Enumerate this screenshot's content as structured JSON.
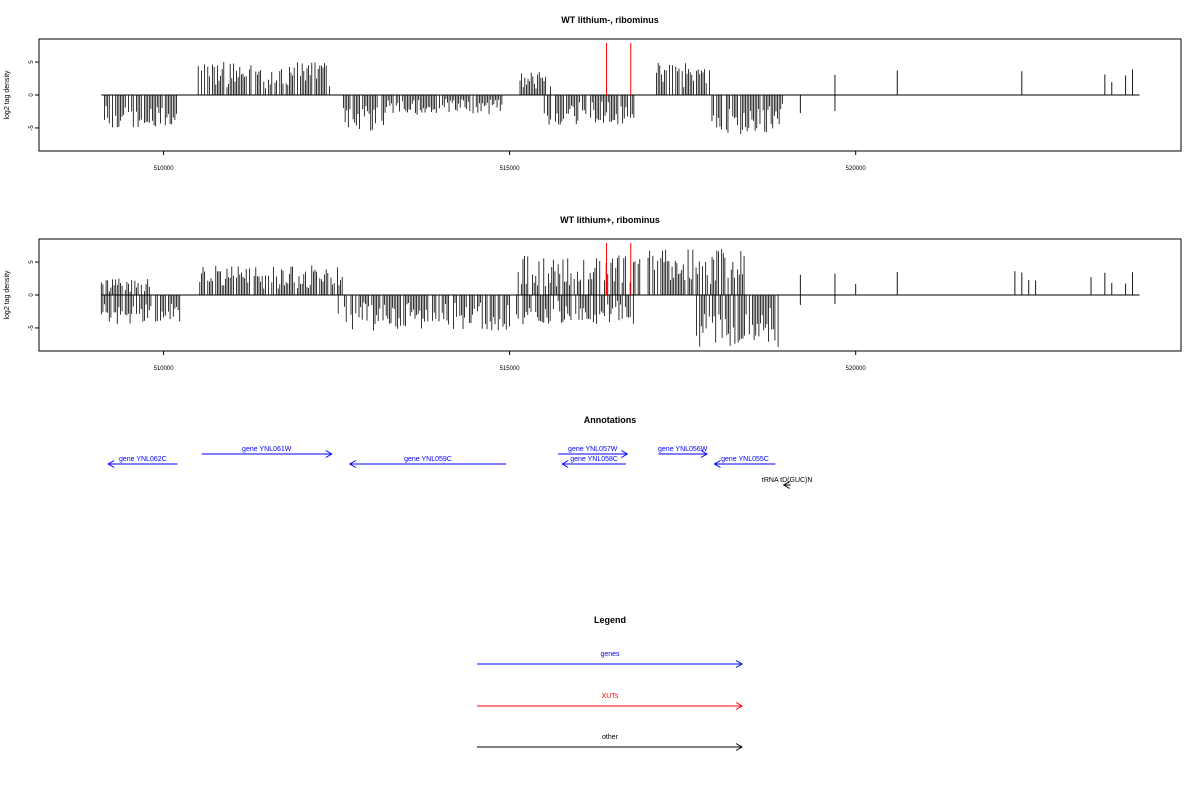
{
  "chart_data": [
    {
      "type": "bar",
      "title": "WT lithium-, ribominus",
      "ylabel": "log2 tag density",
      "xlim": [
        508200,
        524700
      ],
      "ylim": [
        -8.5,
        8.5
      ],
      "xticks": [
        510000,
        515000,
        520000
      ],
      "xtick_labels": [
        "510000",
        "515000",
        "520000"
      ],
      "yticks": [
        5,
        0,
        -5
      ],
      "ytick_labels": [
        "5",
        "0",
        "-5"
      ],
      "grid": false,
      "xut_markers_x": [
        516400,
        516750
      ],
      "signal": [
        {
          "start": 509100,
          "end": 510200,
          "strand": "minus",
          "max": 5.0
        },
        {
          "start": 510500,
          "end": 512400,
          "strand": "plus",
          "max": 5.0
        },
        {
          "start": 512600,
          "end": 513200,
          "strand": "minus",
          "max": 5.8
        },
        {
          "start": 513200,
          "end": 514900,
          "strand": "minus",
          "max": 3.0
        },
        {
          "start": 515150,
          "end": 515600,
          "strand": "plus",
          "max": 3.5
        },
        {
          "start": 515500,
          "end": 516800,
          "strand": "minus",
          "max": 4.5
        },
        {
          "start": 517100,
          "end": 517900,
          "strand": "plus",
          "max": 5.0
        },
        {
          "start": 517900,
          "end": 518950,
          "strand": "minus",
          "max": 6.0
        }
      ],
      "sparse_plus_x": [
        519700,
        520600,
        522400,
        523600,
        523700,
        523900,
        524000
      ],
      "sparse_minus_x": [
        519200,
        519700
      ]
    },
    {
      "type": "bar",
      "title": "WT lithium+, ribominus",
      "ylabel": "log2 tag density",
      "xlim": [
        508200,
        524700
      ],
      "ylim": [
        -8.5,
        8.5
      ],
      "xticks": [
        510000,
        515000,
        520000
      ],
      "xtick_labels": [
        "510000",
        "515000",
        "520000"
      ],
      "yticks": [
        5,
        0,
        -5
      ],
      "ytick_labels": [
        "5",
        "0",
        "-5"
      ],
      "grid": false,
      "xut_markers_x": [
        516400,
        516750
      ],
      "signal": [
        {
          "start": 509100,
          "end": 510250,
          "strand": "minus",
          "max": 4.5
        },
        {
          "start": 509100,
          "end": 509800,
          "strand": "plus",
          "max": 2.5
        },
        {
          "start": 510500,
          "end": 512600,
          "strand": "plus",
          "max": 4.5
        },
        {
          "start": 512500,
          "end": 515000,
          "strand": "minus",
          "max": 5.5
        },
        {
          "start": 515100,
          "end": 516900,
          "strand": "plus",
          "max": 6.0
        },
        {
          "start": 515100,
          "end": 516800,
          "strand": "minus",
          "max": 4.5
        },
        {
          "start": 517000,
          "end": 518400,
          "strand": "plus",
          "max": 7.0
        },
        {
          "start": 517700,
          "end": 518900,
          "strand": "minus",
          "max": 8.0
        }
      ],
      "sparse_plus_x": [
        519200,
        519700,
        520000,
        520600,
        522300,
        522400,
        522500,
        522600,
        523400,
        523600,
        523700,
        523900,
        524000
      ],
      "sparse_minus_x": [
        519200,
        519700
      ]
    }
  ],
  "annotations": {
    "title": "Annotations",
    "features": [
      {
        "label": "gene YNL062C",
        "start": 509200,
        "end": 510200,
        "strand": "minus",
        "row": 1,
        "color": "#0000ff"
      },
      {
        "label": "gene YNL061W",
        "start": 510550,
        "end": 512430,
        "strand": "plus",
        "row": 0,
        "color": "#0000ff"
      },
      {
        "label": "gene YNL059C",
        "start": 512690,
        "end": 514950,
        "strand": "minus",
        "row": 1,
        "color": "#0000ff"
      },
      {
        "label": "gene YNL057W",
        "start": 515700,
        "end": 516700,
        "strand": "plus",
        "row": 0,
        "color": "#0000ff"
      },
      {
        "label": "gene YNL058C",
        "start": 515760,
        "end": 516680,
        "strand": "minus",
        "row": 1,
        "color": "#0000ff"
      },
      {
        "label": "gene YNL056W",
        "start": 517150,
        "end": 517850,
        "strand": "plus",
        "row": 0,
        "color": "#0000ff"
      },
      {
        "label": "gene YNL055C",
        "start": 517960,
        "end": 518840,
        "strand": "minus",
        "row": 1,
        "color": "#0000ff"
      },
      {
        "label": "tRNA tD(GUC)N",
        "start": 518960,
        "end": 519060,
        "strand": "minus",
        "row": 2,
        "color": "#000000"
      }
    ]
  },
  "legend": {
    "title": "Legend",
    "items": [
      {
        "label": "genes",
        "color": "#0000ff"
      },
      {
        "label": "XUTs",
        "color": "#ff0000"
      },
      {
        "label": "other",
        "color": "#000000"
      }
    ]
  }
}
